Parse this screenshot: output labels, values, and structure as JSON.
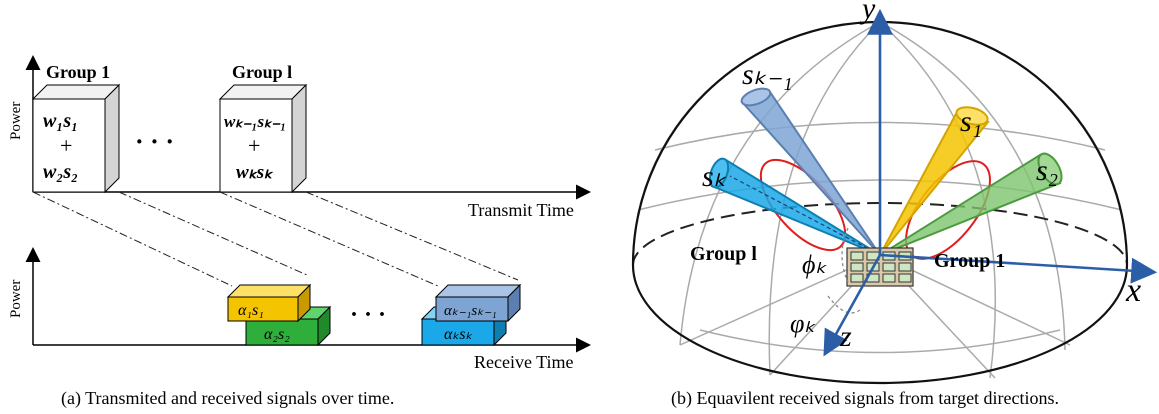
{
  "panel_a": {
    "top_axis": {
      "ylabel": "Power",
      "xlabel": "Transmit Time"
    },
    "bottom_axis": {
      "ylabel": "Power",
      "xlabel": "Receive Time"
    },
    "group1": {
      "label": "Group 1",
      "line1": "w₁s₁",
      "plus": "+",
      "line2": "w₂s₂"
    },
    "groupl": {
      "label": "Group l",
      "line1": "wₖ₋₁sₖ₋₁",
      "plus": "+",
      "line2": "wₖsₖ"
    },
    "ellipsis": "· · ·",
    "rx_blocks": {
      "b1": "α₁s₁",
      "b2": "α₂s₂",
      "b3": "αₖ₋₁sₖ₋₁",
      "b4": "αₖsₖ"
    },
    "rx_ellipsis": "· · ·",
    "caption": "(a) Transmited and received signals over time."
  },
  "panel_b": {
    "axis_y": "y",
    "axis_x": "x",
    "axis_z": "z",
    "beam_s1": "s₁",
    "beam_s2": "s₂",
    "beam_sk1": "sₖ₋₁",
    "beam_sk": "sₖ",
    "group1": "Group 1",
    "groupl": "Group l",
    "phi": "ϕₖ",
    "varphi": "φₖ",
    "caption": "(b) Equavilent received signals from target directions."
  },
  "colors": {
    "yellow": "#f5c400",
    "green": "#2eae3a",
    "blue_dark": "#2f6fb5",
    "cyan": "#1aa8e8",
    "steel": "#7ea4d4",
    "axis_blue": "#2c5ea8",
    "ellipse_red": "#e01e1e"
  }
}
